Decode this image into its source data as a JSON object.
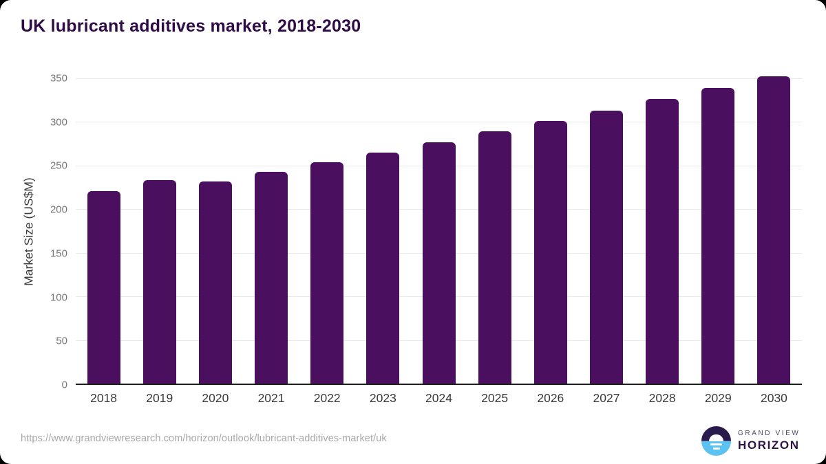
{
  "title": "UK lubricant additives market, 2018-2030",
  "chart_data": {
    "type": "bar",
    "title": "UK lubricant additives market, 2018-2030",
    "categories": [
      "2018",
      "2019",
      "2020",
      "2021",
      "2022",
      "2023",
      "2024",
      "2025",
      "2026",
      "2027",
      "2028",
      "2029",
      "2030"
    ],
    "values": [
      221,
      233,
      232,
      243,
      254,
      265,
      277,
      289,
      301,
      313,
      326,
      339,
      352
    ],
    "xlabel": "",
    "ylabel": "Market Size (US$M)",
    "ylim": [
      0,
      350
    ],
    "yticks": [
      0,
      50,
      100,
      150,
      200,
      250,
      300,
      350
    ],
    "grid": true,
    "legend": false,
    "bar_color": "#4a105f"
  },
  "footer": {
    "source_url": "https://www.grandviewresearch.com/horizon/outlook/lubricant-additives-market/uk",
    "logo": {
      "top": "GRAND VIEW",
      "bottom": "HORIZON"
    }
  },
  "colors": {
    "bar": "#4a105f",
    "title_text": "#2f0c45",
    "axis_line": "#1f1f1f",
    "gridline": "#e9e9ec",
    "tick_text": "#757575",
    "logo_dark": "#2b1b4d",
    "logo_blue": "#5bc2f2"
  }
}
